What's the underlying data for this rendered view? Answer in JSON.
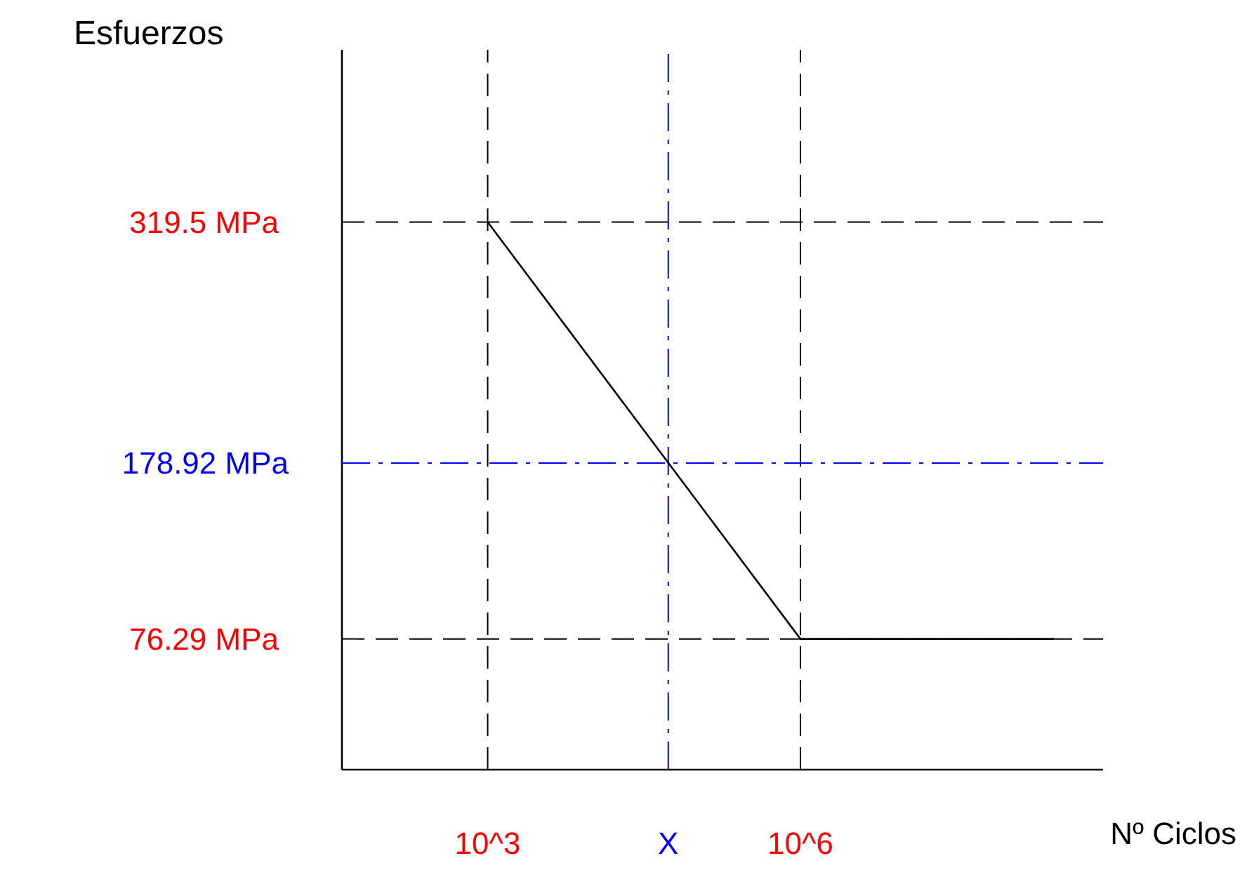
{
  "chart_data": {
    "type": "line",
    "xlabel": "Nº Ciclos",
    "ylabel": "Esfuerzos",
    "log": "x",
    "x": [
      1000,
      1000000,
      270000000
    ],
    "series": [
      {
        "color": "#000000",
        "values": [
          319.5,
          76.29,
          76.29
        ]
      }
    ],
    "xlim": [
      40,
      800000000
    ],
    "ylim": [
      0,
      420
    ],
    "xticks": [
      {
        "value": 1000,
        "label": "10^3"
      },
      {
        "value": 1000000,
        "label": "10^6"
      }
    ],
    "yticks": [
      {
        "value": 76.29,
        "label": "76.29 MPa"
      },
      {
        "value": 319.5,
        "label": "319.5 MPa"
      }
    ],
    "ref_lines": [
      {
        "axis": "x",
        "value": 1000,
        "color": "#000000",
        "line_style": "dashed"
      },
      {
        "axis": "x",
        "value": 1000000,
        "color": "#000000",
        "line_style": "dashed"
      },
      {
        "axis": "y",
        "value": 319.5,
        "color": "#000000",
        "line_style": "dashed"
      },
      {
        "axis": "y",
        "value": 76.29,
        "color": "#000000",
        "line_style": "dashed"
      },
      {
        "axis": "x",
        "value": 54000,
        "label": "X",
        "color": "#0000ff",
        "line_style": "dashdot"
      },
      {
        "axis": "y",
        "value": 178.92,
        "label": "178.92 MPa",
        "color": "#0000ff",
        "line_style": "dashdot"
      }
    ],
    "grid": false,
    "marker": "none",
    "line_style": "solid"
  }
}
